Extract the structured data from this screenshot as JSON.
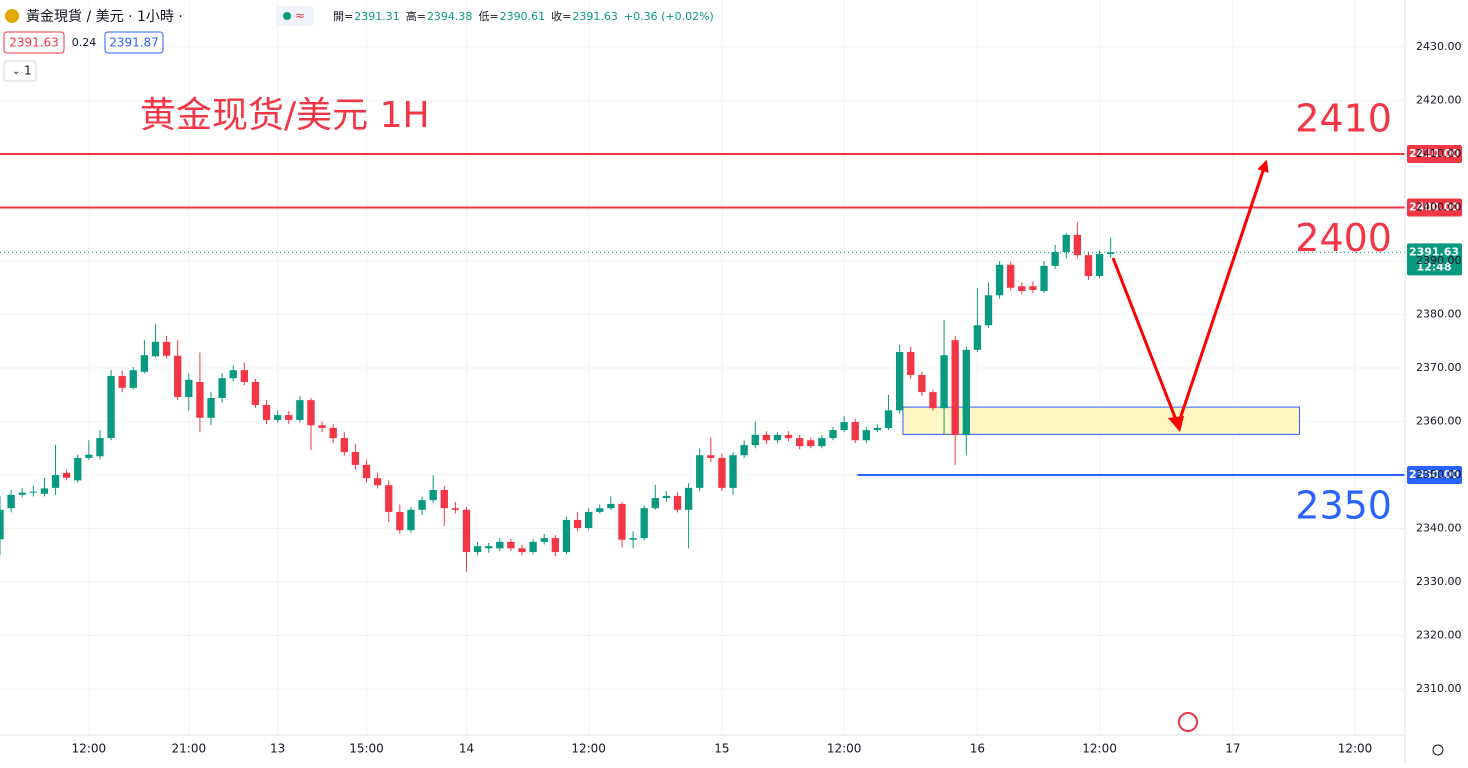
{
  "header": {
    "symbol": "黃金現貨 / 美元 · 1小時 ·",
    "quote": [
      {
        "label": "開=",
        "value": "2391.31"
      },
      {
        "label": "高=",
        "value": "2394.38"
      },
      {
        "label": "低=",
        "value": "2390.61"
      },
      {
        "label": "收=",
        "value": "2391.63"
      }
    ],
    "change": "+0.36 (+0.02%)",
    "bid": "2391.63",
    "spread": "0.24",
    "ask": "2391.87",
    "interval": "1"
  },
  "chart_data": {
    "type": "candlestick",
    "up_color": "#089981",
    "down_color": "#f23645",
    "open": [
      2338,
      2343.8,
      2346.3,
      2346.7,
      2346.5,
      2347.6,
      2350.4,
      2349,
      2353.2,
      2353.5,
      2356.9,
      2368.5,
      2366.3,
      2369.3,
      2372.2,
      2374.9,
      2372.3,
      2364.6,
      2367.4,
      2360.7,
      2364.4,
      2368.1,
      2369.6,
      2367.4,
      2363.1,
      2360.3,
      2361.2,
      2360.3,
      2364,
      2359.3,
      2358.8,
      2356.9,
      2354.3,
      2351.9,
      2349.4,
      2348.1,
      2343.1,
      2339.7,
      2343.5,
      2345.3,
      2347.2,
      2343.8,
      2343.5,
      2335.6,
      2336.3,
      2336.3,
      2337.5,
      2336.3,
      2335.6,
      2337.5,
      2338.2,
      2335.6,
      2341.6,
      2340.1,
      2343.1,
      2343.8,
      2344.6,
      2337.9,
      2338.2,
      2343.8,
      2345.7,
      2346.1,
      2343.5,
      2347.6,
      2353.7,
      2353.2,
      2347.6,
      2353.7,
      2355.6,
      2357.5,
      2356.5,
      2357.5,
      2356.9,
      2356.5,
      2355.4,
      2356.9,
      2358.4,
      2359.9,
      2356.5,
      2358.4,
      2358.8,
      2362.1,
      2373,
      2368.7,
      2365.5,
      2362.5,
      2375.2,
      2357.5,
      2373.4,
      2378,
      2383.6,
      2389.3,
      2385.3,
      2385.3,
      2384.4,
      2389.1,
      2391.7,
      2394.9,
      2391.1,
      2387.2,
      2391.31
    ],
    "high": [
      2346,
      2347.2,
      2347.5,
      2348,
      2349.5,
      2355.6,
      2351,
      2353.8,
      2356.5,
      2358.4,
      2369.6,
      2369.5,
      2370.2,
      2375.2,
      2378.2,
      2376,
      2375.2,
      2369,
      2372.9,
      2365.5,
      2369,
      2370.5,
      2371,
      2368,
      2364,
      2362,
      2362,
      2364.8,
      2364.4,
      2360,
      2359.5,
      2358,
      2355.8,
      2352.8,
      2350.5,
      2349,
      2344.5,
      2344,
      2346,
      2350,
      2348,
      2345,
      2344,
      2337.5,
      2337.3,
      2338.2,
      2338,
      2337,
      2338,
      2339,
      2338.8,
      2342.2,
      2343,
      2343.8,
      2344.5,
      2346,
      2345,
      2339.5,
      2344.3,
      2348.2,
      2347,
      2346.8,
      2348.5,
      2355,
      2357,
      2354,
      2354.3,
      2356.5,
      2360,
      2358.2,
      2358,
      2358.2,
      2357.5,
      2357,
      2357.5,
      2359,
      2361,
      2360.5,
      2359,
      2359.5,
      2365,
      2374.3,
      2374,
      2369.3,
      2366,
      2379,
      2376,
      2374,
      2385,
      2386,
      2390,
      2389.9,
      2386,
      2386.2,
      2390,
      2393,
      2395.2,
      2397.3,
      2391.8,
      2392,
      2394.38
    ],
    "low": [
      2335,
      2343,
      2345.8,
      2346,
      2346,
      2346.3,
      2349,
      2348.6,
      2352.8,
      2353,
      2356.5,
      2365.5,
      2366,
      2369,
      2372,
      2371.8,
      2364,
      2362,
      2358,
      2359.3,
      2363.5,
      2367.5,
      2366.8,
      2362.5,
      2359.5,
      2359.8,
      2359.5,
      2359.8,
      2354.7,
      2358,
      2356,
      2353.6,
      2351,
      2348.6,
      2347.5,
      2341.2,
      2339,
      2339.2,
      2342.5,
      2344.8,
      2340.5,
      2342.8,
      2331.9,
      2335,
      2335.5,
      2335.8,
      2335.8,
      2335,
      2335.2,
      2337,
      2334.8,
      2335.2,
      2339.5,
      2339.8,
      2342.8,
      2343.5,
      2336.5,
      2336.3,
      2337.8,
      2343.5,
      2345,
      2343,
      2336.3,
      2347,
      2352.4,
      2347,
      2346.3,
      2353.2,
      2355,
      2355.8,
      2356,
      2356.3,
      2354.8,
      2355,
      2355,
      2356.5,
      2358,
      2356,
      2356,
      2358,
      2358.4,
      2361.5,
      2368,
      2364.8,
      2362,
      2357.5,
      2351.9,
      2353.7,
      2373,
      2377.5,
      2383,
      2384.5,
      2383.8,
      2384,
      2384,
      2388.5,
      2390.5,
      2390.5,
      2386.5,
      2386.8,
      2390.61
    ],
    "close": [
      2343.5,
      2346.3,
      2346.7,
      2346.9,
      2347.5,
      2350,
      2349.5,
      2353.2,
      2353.8,
      2356.9,
      2368.5,
      2366.3,
      2369.6,
      2372.4,
      2374.9,
      2372.3,
      2364.6,
      2367.8,
      2360.7,
      2364.4,
      2368.1,
      2369.6,
      2367.4,
      2363.1,
      2360.3,
      2361.2,
      2360.3,
      2364,
      2359.3,
      2358.8,
      2356.9,
      2354.3,
      2351.9,
      2349.4,
      2348.1,
      2343.1,
      2339.7,
      2343.5,
      2345.3,
      2347.2,
      2343.8,
      2343.5,
      2335.6,
      2336.7,
      2336.7,
      2337.5,
      2336.3,
      2335.6,
      2337.5,
      2338.2,
      2335.6,
      2341.6,
      2340.1,
      2343.1,
      2343.8,
      2344.6,
      2337.9,
      2338.2,
      2343.8,
      2345.7,
      2346.1,
      2343.5,
      2347.6,
      2353.7,
      2353.2,
      2347.6,
      2353.7,
      2355.6,
      2357.5,
      2356.5,
      2357.5,
      2356.9,
      2355.4,
      2355.4,
      2356.9,
      2358.4,
      2359.9,
      2356.5,
      2358.4,
      2358.8,
      2362.1,
      2373,
      2368.7,
      2365.5,
      2362.5,
      2372.4,
      2357.5,
      2373.4,
      2378,
      2383.6,
      2389.3,
      2385,
      2384.4,
      2384.6,
      2389.1,
      2391.7,
      2394.9,
      2391.1,
      2387.2,
      2391.31,
      2391.63
    ],
    "xlim": [
      0,
      126.5
    ],
    "xticks": [
      {
        "value": 8,
        "label": "12:00"
      },
      {
        "value": 17,
        "label": "21:00"
      },
      {
        "value": 25,
        "label": "13"
      },
      {
        "value": 33,
        "label": "15:00"
      },
      {
        "value": 42,
        "label": "14"
      },
      {
        "value": 53,
        "label": "12:00"
      },
      {
        "value": 65,
        "label": "15"
      },
      {
        "value": 76,
        "label": "12:00"
      },
      {
        "value": 88,
        "label": "16"
      },
      {
        "value": 99,
        "label": "12:00"
      },
      {
        "value": 111,
        "label": "17"
      },
      {
        "value": 122,
        "label": "12:00"
      }
    ],
    "ylim": [
      2301.4,
      2438.8
    ],
    "yticks": [
      {
        "value": 2310,
        "label": "2310.00"
      },
      {
        "value": 2320,
        "label": "2320.00"
      },
      {
        "value": 2330,
        "label": "2330.00"
      },
      {
        "value": 2340,
        "label": "2340.00"
      },
      {
        "value": 2350,
        "label": "2350.00"
      },
      {
        "value": 2360,
        "label": "2360.00"
      },
      {
        "value": 2370,
        "label": "2370.00"
      },
      {
        "value": 2380,
        "label": "2380.00"
      },
      {
        "value": 2390,
        "label": "2390.00"
      },
      {
        "value": 2400,
        "label": "2400.00"
      },
      {
        "value": 2410,
        "label": "2410.00"
      },
      {
        "value": 2420,
        "label": "2420.00"
      },
      {
        "value": 2430,
        "label": "2430.00"
      }
    ],
    "grid": true,
    "last_price": {
      "value": 2391.63,
      "label": "2391.63",
      "countdown": "12:48",
      "color": "#089981"
    },
    "title": "黄金现货/美元 1H",
    "levels": [
      {
        "value": 2410,
        "axis_label": "2410.00",
        "label": "2410",
        "color": "#f23645",
        "x_start": 0
      },
      {
        "value": 2400,
        "axis_label": "2400.00",
        "label": "2400",
        "color": "#f23645",
        "x_start": 0
      },
      {
        "value": 2350,
        "axis_label": "2350.00",
        "label": "2350",
        "color": "#2962ff",
        "x_start": 77.2
      }
    ],
    "zone": {
      "x": [
        81.3,
        117
      ],
      "y": [
        2357.6,
        2362.7
      ]
    }
  }
}
